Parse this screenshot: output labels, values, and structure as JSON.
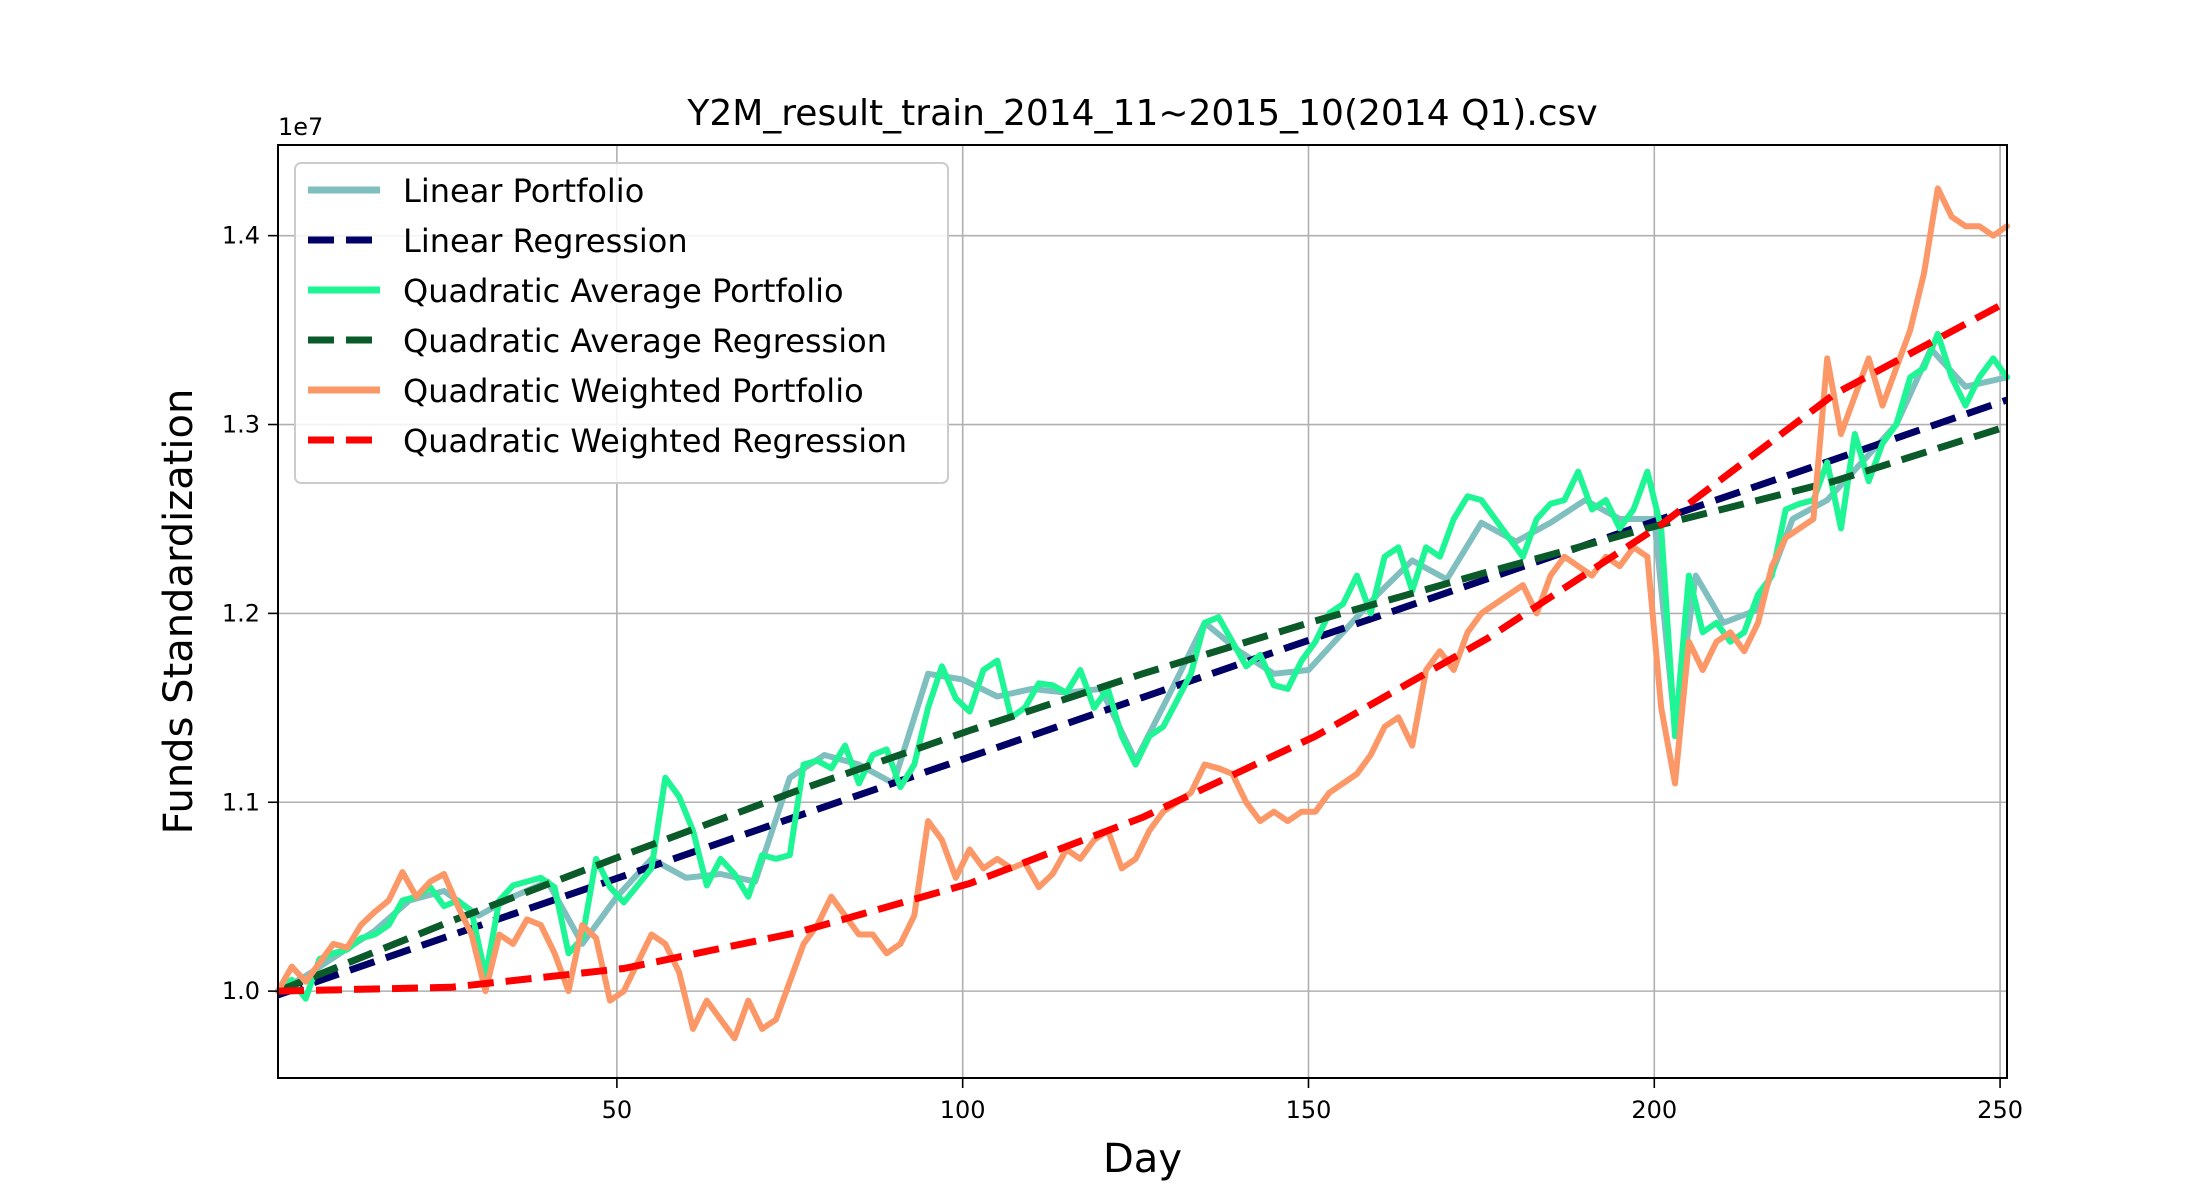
{
  "chart_data": {
    "type": "line",
    "title": "Y2M_result_train_2014_11~2015_10(2014 Q1).csv",
    "xlabel": "Day",
    "ylabel": "Funds Standardization",
    "y_offset_text": "1e7",
    "xlim": [
      1,
      251
    ],
    "ylim": [
      9540000,
      14480000
    ],
    "xticks": [
      50,
      100,
      150,
      200,
      250
    ],
    "yticks": [
      10000000,
      11000000,
      12000000,
      13000000,
      14000000
    ],
    "ytick_labels": [
      "1.0",
      "1.1",
      "1.2",
      "1.3",
      "1.4"
    ],
    "grid": true,
    "legend_position": "upper-left",
    "series": [
      {
        "name": "Linear Portfolio",
        "style": "solid",
        "color": "#7fbfbf",
        "x": [
          1,
          5,
          10,
          15,
          20,
          25,
          30,
          35,
          40,
          45,
          50,
          55,
          60,
          65,
          70,
          75,
          80,
          85,
          90,
          95,
          100,
          105,
          110,
          115,
          120,
          125,
          130,
          135,
          140,
          145,
          150,
          155,
          160,
          165,
          170,
          175,
          180,
          185,
          190,
          195,
          200,
          203,
          206,
          210,
          215,
          220,
          225,
          230,
          235,
          240,
          245,
          251
        ],
        "y": [
          10000000,
          10080000,
          10200000,
          10320000,
          10480000,
          10530000,
          10400000,
          10500000,
          10580000,
          10250000,
          10500000,
          10700000,
          10600000,
          10620000,
          10580000,
          11130000,
          11250000,
          11200000,
          11100000,
          11680000,
          11650000,
          11560000,
          11600000,
          11580000,
          11600000,
          11220000,
          11580000,
          11950000,
          11800000,
          11680000,
          11700000,
          11900000,
          12100000,
          12280000,
          12180000,
          12480000,
          12380000,
          12480000,
          12600000,
          12500000,
          12500000,
          11400000,
          12200000,
          11950000,
          12020000,
          12500000,
          12600000,
          12800000,
          13000000,
          13400000,
          13200000,
          13250000
        ]
      },
      {
        "name": "Linear Regression",
        "style": "dashed",
        "color": "#000066",
        "x": [
          1,
          251
        ],
        "y": [
          9980000,
          13130000
        ]
      },
      {
        "name": "Quadratic Average Portfolio",
        "style": "solid",
        "color": "#1ef595",
        "x": [
          1,
          3,
          5,
          7,
          9,
          11,
          13,
          15,
          17,
          19,
          21,
          23,
          25,
          27,
          29,
          31,
          33,
          35,
          37,
          39,
          41,
          43,
          45,
          47,
          49,
          51,
          53,
          55,
          57,
          59,
          61,
          63,
          65,
          67,
          69,
          71,
          73,
          75,
          77,
          79,
          81,
          83,
          85,
          87,
          89,
          91,
          93,
          95,
          97,
          99,
          101,
          103,
          105,
          107,
          109,
          111,
          113,
          115,
          117,
          119,
          121,
          123,
          125,
          127,
          129,
          131,
          133,
          135,
          137,
          139,
          141,
          143,
          145,
          147,
          149,
          151,
          153,
          155,
          157,
          159,
          161,
          163,
          165,
          167,
          169,
          171,
          173,
          175,
          177,
          179,
          181,
          183,
          185,
          187,
          189,
          191,
          193,
          195,
          197,
          199,
          201,
          203,
          205,
          207,
          209,
          211,
          213,
          215,
          217,
          219,
          221,
          223,
          225,
          227,
          229,
          231,
          233,
          235,
          237,
          239,
          241,
          243,
          245,
          247,
          249,
          251
        ],
        "y": [
          10000000,
          10060000,
          9960000,
          10170000,
          10200000,
          10220000,
          10280000,
          10300000,
          10350000,
          10480000,
          10500000,
          10550000,
          10450000,
          10480000,
          10420000,
          10080000,
          10480000,
          10560000,
          10580000,
          10600000,
          10550000,
          10200000,
          10280000,
          10700000,
          10550000,
          10470000,
          10560000,
          10650000,
          11130000,
          11030000,
          10850000,
          10560000,
          10700000,
          10620000,
          10500000,
          10720000,
          10700000,
          10720000,
          11200000,
          11220000,
          11180000,
          11300000,
          11100000,
          11250000,
          11280000,
          11080000,
          11200000,
          11500000,
          11720000,
          11550000,
          11480000,
          11700000,
          11750000,
          11450000,
          11500000,
          11630000,
          11620000,
          11580000,
          11700000,
          11500000,
          11600000,
          11350000,
          11200000,
          11350000,
          11400000,
          11540000,
          11680000,
          11950000,
          11980000,
          11850000,
          11720000,
          11780000,
          11620000,
          11600000,
          11750000,
          11850000,
          12000000,
          12050000,
          12200000,
          12000000,
          12300000,
          12350000,
          12120000,
          12350000,
          12300000,
          12500000,
          12620000,
          12600000,
          12500000,
          12400000,
          12300000,
          12500000,
          12580000,
          12600000,
          12750000,
          12550000,
          12600000,
          12450000,
          12550000,
          12750000,
          12450000,
          11350000,
          12200000,
          11900000,
          11950000,
          11850000,
          11900000,
          12100000,
          12200000,
          12550000,
          12580000,
          12600000,
          12800000,
          12450000,
          12950000,
          12700000,
          12900000,
          13000000,
          13250000,
          13300000,
          13480000,
          13250000,
          13100000,
          13250000,
          13350000,
          13250000
        ]
      },
      {
        "name": "Quadratic Average Regression",
        "style": "dashed",
        "color": "#0a5a2a",
        "x": [
          1,
          26,
          51,
          76,
          101,
          126,
          151,
          176,
          201,
          226,
          251
        ],
        "y": [
          10000000,
          10370000,
          10720000,
          11060000,
          11380000,
          11680000,
          11960000,
          12220000,
          12470000,
          12700000,
          12990000
        ]
      },
      {
        "name": "Quadratic Weighted Portfolio",
        "style": "solid",
        "color": "#fc9868",
        "x": [
          1,
          3,
          5,
          7,
          9,
          11,
          13,
          15,
          17,
          19,
          21,
          23,
          25,
          27,
          29,
          31,
          33,
          35,
          37,
          39,
          41,
          43,
          45,
          47,
          49,
          51,
          53,
          55,
          57,
          59,
          61,
          63,
          65,
          67,
          69,
          71,
          73,
          75,
          77,
          79,
          81,
          83,
          85,
          87,
          89,
          91,
          93,
          95,
          97,
          99,
          101,
          103,
          105,
          107,
          109,
          111,
          113,
          115,
          117,
          119,
          121,
          123,
          125,
          127,
          129,
          131,
          133,
          135,
          137,
          139,
          141,
          143,
          145,
          147,
          149,
          151,
          153,
          155,
          157,
          159,
          161,
          163,
          165,
          167,
          169,
          171,
          173,
          175,
          177,
          179,
          181,
          183,
          185,
          187,
          189,
          191,
          193,
          195,
          197,
          199,
          201,
          203,
          205,
          207,
          209,
          211,
          213,
          215,
          217,
          219,
          221,
          223,
          225,
          227,
          229,
          231,
          233,
          235,
          237,
          239,
          241,
          243,
          245,
          247,
          249,
          251
        ],
        "y": [
          10000000,
          10130000,
          10050000,
          10150000,
          10250000,
          10230000,
          10350000,
          10420000,
          10480000,
          10630000,
          10500000,
          10580000,
          10620000,
          10450000,
          10300000,
          10000000,
          10300000,
          10250000,
          10380000,
          10350000,
          10200000,
          10000000,
          10350000,
          10280000,
          9950000,
          10000000,
          10150000,
          10300000,
          10250000,
          10100000,
          9800000,
          9950000,
          9850000,
          9750000,
          9950000,
          9800000,
          9850000,
          10050000,
          10250000,
          10350000,
          10500000,
          10400000,
          10300000,
          10300000,
          10200000,
          10250000,
          10400000,
          10900000,
          10800000,
          10600000,
          10750000,
          10650000,
          10700000,
          10650000,
          10680000,
          10550000,
          10620000,
          10750000,
          10700000,
          10800000,
          10850000,
          10650000,
          10700000,
          10850000,
          10950000,
          11000000,
          11050000,
          11200000,
          11180000,
          11150000,
          11000000,
          10900000,
          10950000,
          10900000,
          10950000,
          10950000,
          11050000,
          11100000,
          11150000,
          11250000,
          11400000,
          11450000,
          11300000,
          11700000,
          11800000,
          11700000,
          11900000,
          12000000,
          12050000,
          12100000,
          12150000,
          12000000,
          12200000,
          12300000,
          12250000,
          12200000,
          12300000,
          12250000,
          12350000,
          12300000,
          11500000,
          11100000,
          11850000,
          11700000,
          11850000,
          11900000,
          11800000,
          11950000,
          12250000,
          12400000,
          12450000,
          12500000,
          13350000,
          12950000,
          13150000,
          13350000,
          13100000,
          13300000,
          13500000,
          13800000,
          14250000,
          14100000,
          14050000,
          14050000,
          14000000,
          14050000
        ]
      },
      {
        "name": "Quadratic Weighted Regression",
        "style": "dashed",
        "color": "#ff0000",
        "x": [
          1,
          26,
          51,
          76,
          101,
          126,
          151,
          176,
          201,
          226,
          251
        ],
        "y": [
          10000000,
          10020000,
          10120000,
          10310000,
          10570000,
          10920000,
          11350000,
          11870000,
          12470000,
          13160000,
          13650000
        ]
      }
    ]
  }
}
